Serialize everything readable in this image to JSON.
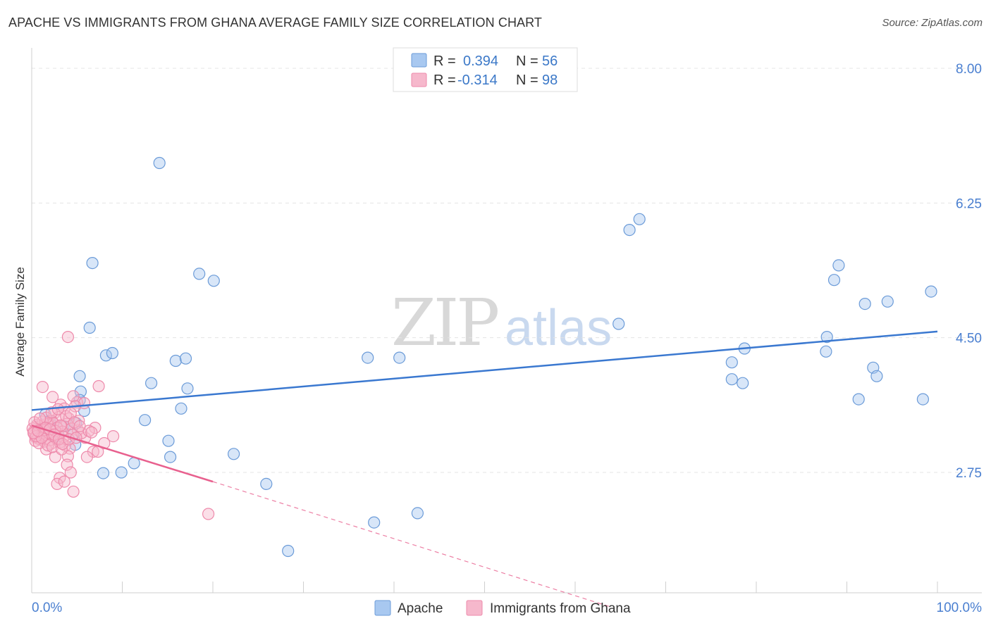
{
  "title": "APACHE VS IMMIGRANTS FROM GHANA AVERAGE FAMILY SIZE CORRELATION CHART",
  "source": "Source: ZipAtlas.com",
  "watermark": {
    "zip": "ZIP",
    "atlas": "atlas"
  },
  "legend": {
    "r_label": "R =",
    "n_label": "N =",
    "rows": [
      {
        "series": "Apache",
        "r": "0.394",
        "n": "56",
        "color": "#a8c8f0"
      },
      {
        "series": "Immigrants from Ghana",
        "r": "-0.314",
        "n": "98",
        "color": "#f6b8cc"
      }
    ]
  },
  "chart_data": {
    "type": "scatter",
    "title": "APACHE VS IMMIGRANTS FROM GHANA AVERAGE FAMILY SIZE CORRELATION CHART",
    "xlabel": "",
    "ylabel": "Average Family Size",
    "xlim": [
      0,
      100
    ],
    "ylim": [
      1.2,
      8.2
    ],
    "x_tick_labels": [
      "0.0%",
      "100.0%"
    ],
    "y_ticks": [
      2.75,
      4.5,
      6.25,
      8.0
    ],
    "y_tick_labels": [
      "2.75",
      "4.50",
      "6.25",
      "8.00"
    ],
    "grid": true,
    "legend_position": "top-center",
    "series": [
      {
        "name": "Apache",
        "color": "#a8c8f0",
        "stroke": "#6b9bd8",
        "trend_color": "#3a78d0",
        "trend": {
          "x0": 0,
          "y0": 3.56,
          "x1": 100,
          "y1": 4.58
        },
        "points": [
          [
            14.1,
            6.77
          ],
          [
            6.7,
            5.47
          ],
          [
            18.5,
            5.33
          ],
          [
            20.1,
            5.24
          ],
          [
            6.4,
            4.63
          ],
          [
            8.2,
            4.27
          ],
          [
            8.9,
            4.3
          ],
          [
            5.3,
            4.0
          ],
          [
            13.2,
            3.91
          ],
          [
            15.9,
            4.2
          ],
          [
            17.0,
            4.23
          ],
          [
            17.2,
            3.84
          ],
          [
            5.4,
            3.8
          ],
          [
            5.3,
            3.69
          ],
          [
            5.8,
            3.55
          ],
          [
            16.5,
            3.58
          ],
          [
            12.5,
            3.43
          ],
          [
            4.9,
            3.39
          ],
          [
            15.1,
            3.16
          ],
          [
            4.6,
            3.24
          ],
          [
            4.8,
            3.11
          ],
          [
            15.3,
            2.95
          ],
          [
            22.3,
            2.99
          ],
          [
            11.3,
            2.87
          ],
          [
            7.9,
            2.74
          ],
          [
            9.9,
            2.75
          ],
          [
            25.9,
            2.6
          ],
          [
            37.1,
            4.24
          ],
          [
            40.6,
            4.24
          ],
          [
            28.3,
            1.73
          ],
          [
            37.8,
            2.1
          ],
          [
            42.6,
            2.22
          ],
          [
            64.8,
            4.68
          ],
          [
            67.1,
            6.04
          ],
          [
            66.0,
            5.9
          ],
          [
            89.1,
            5.44
          ],
          [
            88.6,
            5.25
          ],
          [
            92.0,
            4.94
          ],
          [
            94.5,
            4.97
          ],
          [
            99.3,
            5.1
          ],
          [
            87.8,
            4.51
          ],
          [
            78.7,
            4.36
          ],
          [
            77.3,
            4.18
          ],
          [
            87.7,
            4.32
          ],
          [
            92.9,
            4.11
          ],
          [
            93.3,
            4.0
          ],
          [
            77.3,
            3.96
          ],
          [
            78.5,
            3.91
          ],
          [
            91.3,
            3.7
          ],
          [
            98.4,
            3.7
          ],
          [
            1.5,
            3.5
          ],
          [
            2.0,
            3.42
          ],
          [
            3.5,
            3.35
          ],
          [
            2.5,
            3.3
          ],
          [
            1.0,
            3.28
          ],
          [
            3.0,
            3.22
          ]
        ]
      },
      {
        "name": "Immigrants from Ghana",
        "color": "#f6b8cc",
        "stroke": "#ee8aab",
        "trend_color": "#e8608e",
        "trend": {
          "x0": 0,
          "y0": 3.36,
          "x1": 20,
          "y1": 2.63
        },
        "trend_extension": {
          "x0": 20,
          "y0": 2.63,
          "x1": 64,
          "y1": 1.0
        },
        "points": [
          [
            4.0,
            4.51
          ],
          [
            1.2,
            3.86
          ],
          [
            2.3,
            3.73
          ],
          [
            7.4,
            3.87
          ],
          [
            5.0,
            3.66
          ],
          [
            4.6,
            3.74
          ],
          [
            5.8,
            3.65
          ],
          [
            4.8,
            3.61
          ],
          [
            3.2,
            3.63
          ],
          [
            3.6,
            3.58
          ],
          [
            2.5,
            3.52
          ],
          [
            3.0,
            3.47
          ],
          [
            4.1,
            3.45
          ],
          [
            3.9,
            3.38
          ],
          [
            2.2,
            3.42
          ],
          [
            1.8,
            3.39
          ],
          [
            3.3,
            3.35
          ],
          [
            4.4,
            3.32
          ],
          [
            5.1,
            3.3
          ],
          [
            7.0,
            3.33
          ],
          [
            9.0,
            3.22
          ],
          [
            2.9,
            3.26
          ],
          [
            1.5,
            3.29
          ],
          [
            0.6,
            3.31
          ],
          [
            0.8,
            3.27
          ],
          [
            1.0,
            3.24
          ],
          [
            0.4,
            3.21
          ],
          [
            0.9,
            3.18
          ],
          [
            1.4,
            3.15
          ],
          [
            2.1,
            3.12
          ],
          [
            3.1,
            3.14
          ],
          [
            3.7,
            3.1
          ],
          [
            4.2,
            3.06
          ],
          [
            5.9,
            3.2
          ],
          [
            8.0,
            3.13
          ],
          [
            6.8,
            3.02
          ],
          [
            7.3,
            3.02
          ],
          [
            6.1,
            2.95
          ],
          [
            4.0,
            2.96
          ],
          [
            2.6,
            2.95
          ],
          [
            1.6,
            3.05
          ],
          [
            2.0,
            3.17
          ],
          [
            0.3,
            3.24
          ],
          [
            0.5,
            3.34
          ],
          [
            1.1,
            3.36
          ],
          [
            1.7,
            3.38
          ],
          [
            2.4,
            3.39
          ],
          [
            2.8,
            3.33
          ],
          [
            3.4,
            3.28
          ],
          [
            0.2,
            3.28
          ],
          [
            0.7,
            3.19
          ],
          [
            1.3,
            3.23
          ],
          [
            1.9,
            3.26
          ],
          [
            2.7,
            3.19
          ],
          [
            3.5,
            3.21
          ],
          [
            4.5,
            3.24
          ],
          [
            5.5,
            3.26
          ],
          [
            6.3,
            3.29
          ],
          [
            0.1,
            3.32
          ],
          [
            0.6,
            3.37
          ],
          [
            1.2,
            3.41
          ],
          [
            1.6,
            3.46
          ],
          [
            2.2,
            3.53
          ],
          [
            2.9,
            3.57
          ],
          [
            3.8,
            3.48
          ],
          [
            4.3,
            3.52
          ],
          [
            5.2,
            3.42
          ],
          [
            0.4,
            3.16
          ],
          [
            0.8,
            3.13
          ],
          [
            1.8,
            3.1
          ],
          [
            2.3,
            3.08
          ],
          [
            3.3,
            3.05
          ],
          [
            3.9,
            2.85
          ],
          [
            4.3,
            2.75
          ],
          [
            3.1,
            2.68
          ],
          [
            2.8,
            2.6
          ],
          [
            3.6,
            2.63
          ],
          [
            4.6,
            2.5
          ],
          [
            19.5,
            2.21
          ],
          [
            0.3,
            3.4
          ],
          [
            0.9,
            3.45
          ],
          [
            1.4,
            3.3
          ],
          [
            2.6,
            3.29
          ],
          [
            3.2,
            3.36
          ],
          [
            4.7,
            3.4
          ],
          [
            5.3,
            3.35
          ],
          [
            6.6,
            3.27
          ],
          [
            0.5,
            3.22
          ],
          [
            1.1,
            3.2
          ],
          [
            1.5,
            3.33
          ],
          [
            2.0,
            3.31
          ],
          [
            2.5,
            3.24
          ],
          [
            3.0,
            3.18
          ],
          [
            3.4,
            3.12
          ],
          [
            4.1,
            3.18
          ],
          [
            4.9,
            3.2
          ],
          [
            0.2,
            3.26
          ],
          [
            0.7,
            3.29
          ]
        ]
      }
    ]
  }
}
